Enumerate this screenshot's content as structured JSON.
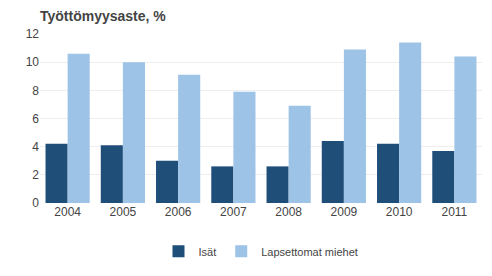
{
  "chart_data": {
    "type": "bar",
    "title": "Työttömyysaste, %",
    "categories": [
      "2004",
      "2005",
      "2006",
      "2007",
      "2008",
      "2009",
      "2010",
      "2011"
    ],
    "series": [
      {
        "name": "Isät",
        "color": "#1F4E79",
        "values": [
          4.2,
          4.1,
          3.0,
          2.6,
          2.6,
          4.4,
          4.2,
          3.7
        ]
      },
      {
        "name": "Lapsettomat miehet",
        "color": "#9DC3E6",
        "values": [
          10.6,
          10.0,
          9.1,
          7.9,
          6.9,
          10.9,
          11.4,
          10.4
        ]
      }
    ],
    "ylim": [
      0,
      12
    ],
    "yticks": [
      0,
      2,
      4,
      6,
      8,
      10,
      12
    ],
    "grid": true,
    "legend": "bottom"
  }
}
